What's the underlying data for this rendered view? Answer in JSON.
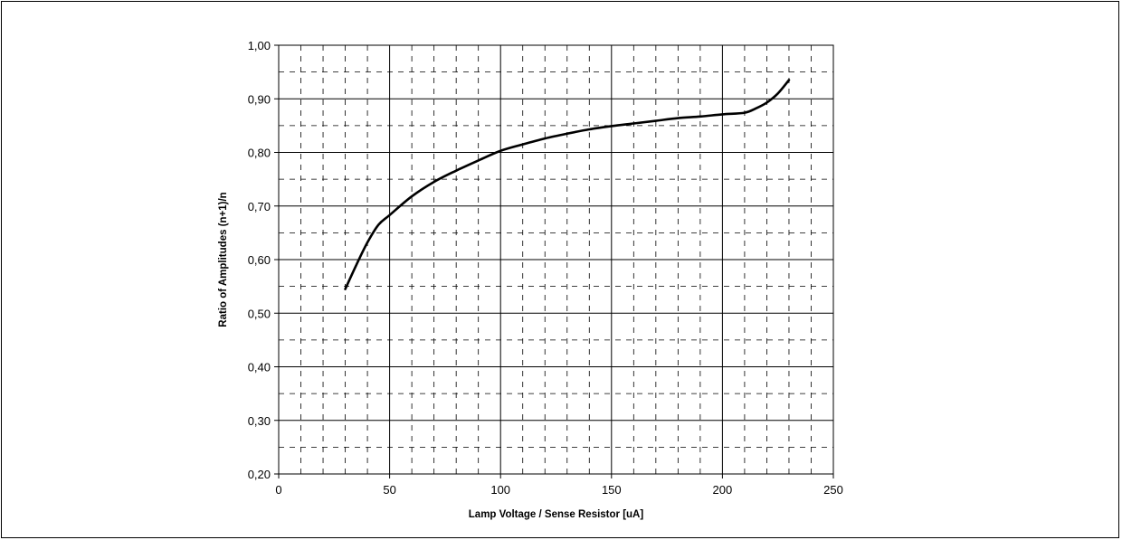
{
  "chart_data": {
    "type": "line",
    "title": "",
    "xlabel": "Lamp Voltage / Sense Resistor [uA]",
    "ylabel": "Ratio of Amplitudes (n+1)/n",
    "xlim": [
      0,
      250
    ],
    "ylim": [
      0.2,
      1.0
    ],
    "x_ticks": [
      0,
      50,
      100,
      150,
      200,
      250
    ],
    "x_tick_labels": [
      "0",
      "50",
      "100",
      "150",
      "200",
      "250"
    ],
    "y_ticks": [
      0.2,
      0.3,
      0.4,
      0.5,
      0.6,
      0.7,
      0.8,
      0.9,
      1.0
    ],
    "y_tick_labels": [
      "0,20",
      "0,30",
      "0,40",
      "0,50",
      "0,60",
      "0,70",
      "0,80",
      "0,90",
      "1,00"
    ],
    "grid": "major solid, minor dashed",
    "x_minor_step": 10,
    "y_minor_step": 0.05,
    "legend": "none",
    "line_color": "#000000",
    "series": [
      {
        "x": [
          30,
          35,
          40,
          45,
          50,
          60,
          70,
          80,
          90,
          100,
          110,
          120,
          130,
          140,
          150,
          160,
          170,
          180,
          190,
          200,
          210,
          215,
          220,
          225,
          230
        ],
        "values": [
          0.545,
          0.59,
          0.632,
          0.665,
          0.683,
          0.718,
          0.745,
          0.766,
          0.785,
          0.803,
          0.815,
          0.826,
          0.835,
          0.843,
          0.849,
          0.854,
          0.859,
          0.864,
          0.867,
          0.871,
          0.874,
          0.882,
          0.893,
          0.91,
          0.935
        ]
      }
    ]
  }
}
